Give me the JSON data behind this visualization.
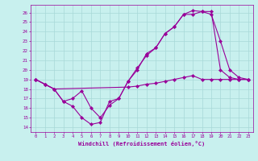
{
  "xlabel": "Windchill (Refroidissement éolien,°C)",
  "xlim": [
    -0.5,
    23.5
  ],
  "ylim": [
    13.5,
    26.8
  ],
  "xticks": [
    0,
    1,
    2,
    3,
    4,
    5,
    6,
    7,
    8,
    9,
    10,
    11,
    12,
    13,
    14,
    15,
    16,
    17,
    18,
    19,
    20,
    21,
    22,
    23
  ],
  "yticks": [
    14,
    15,
    16,
    17,
    18,
    19,
    20,
    21,
    22,
    23,
    24,
    25,
    26
  ],
  "bg_color": "#c8f0ee",
  "grid_color": "#a8d8d8",
  "line_color": "#990099",
  "series1": {
    "x": [
      0,
      1,
      2,
      3,
      4,
      5,
      6,
      7,
      8,
      9,
      10,
      11,
      12,
      13,
      14,
      15,
      16,
      17,
      18,
      19,
      20,
      21,
      22,
      23
    ],
    "y": [
      19.0,
      18.5,
      18.0,
      16.7,
      16.2,
      15.0,
      14.3,
      14.5,
      16.7,
      17.0,
      18.8,
      20.0,
      21.7,
      22.3,
      23.8,
      24.5,
      25.8,
      26.2,
      26.1,
      26.1,
      20.0,
      19.2,
      19.0,
      19.0
    ]
  },
  "series2": {
    "x": [
      0,
      1,
      2,
      10,
      11,
      12,
      13,
      14,
      15,
      16,
      17,
      18,
      19,
      20,
      21,
      22,
      23
    ],
    "y": [
      19.0,
      18.5,
      18.0,
      18.2,
      18.3,
      18.5,
      18.6,
      18.8,
      19.0,
      19.2,
      19.4,
      19.0,
      19.0,
      19.0,
      19.0,
      19.0,
      19.0
    ]
  },
  "series3": {
    "x": [
      0,
      1,
      2,
      3,
      4,
      5,
      6,
      7,
      8,
      9,
      10,
      11,
      12,
      13,
      14,
      15,
      16,
      17,
      18,
      19,
      20,
      21,
      22,
      23
    ],
    "y": [
      19.0,
      18.5,
      18.0,
      16.7,
      17.0,
      17.8,
      16.0,
      15.0,
      16.3,
      17.0,
      18.8,
      20.2,
      21.5,
      22.3,
      23.8,
      24.5,
      25.8,
      25.8,
      26.1,
      25.8,
      23.0,
      20.0,
      19.2,
      19.0
    ]
  }
}
